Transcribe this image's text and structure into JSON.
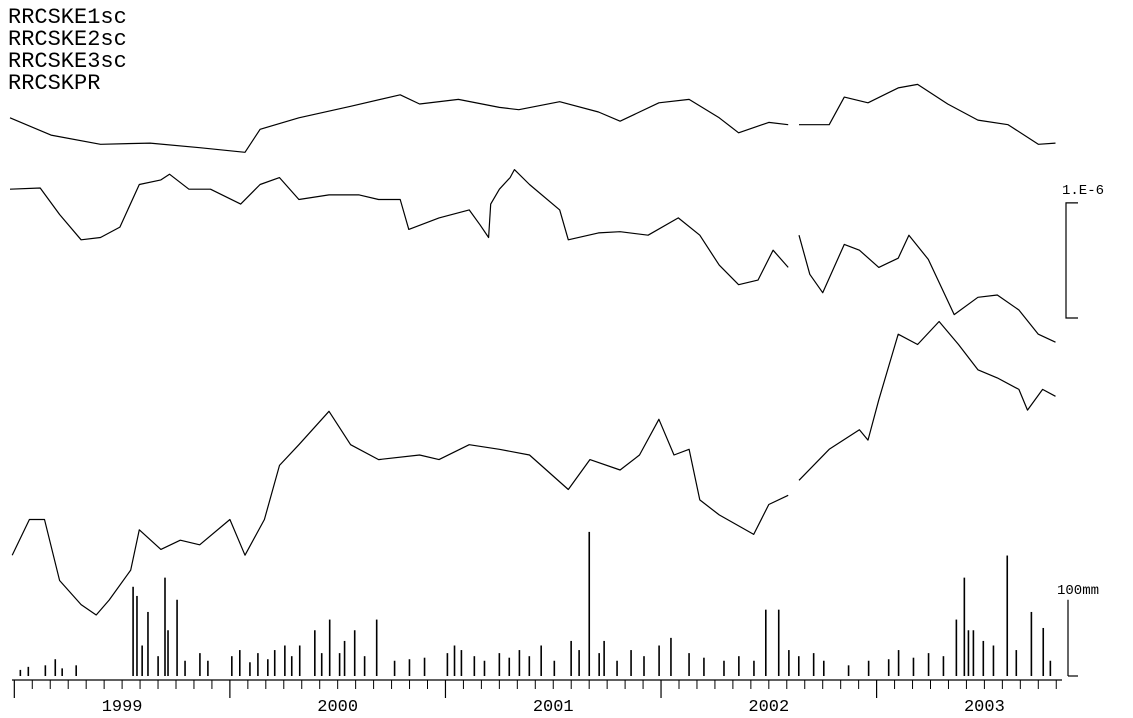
{
  "chart_data": {
    "type": "line",
    "xlim": [
      1998.98,
      2003.86
    ],
    "xticks": [
      1999,
      2000,
      2001,
      2002,
      2003
    ],
    "ylim": [
      0,
      5.3
    ],
    "y2lim": [
      0,
      800
    ],
    "series": [
      {
        "name": "RRCSKE1sc",
        "color": "#000000",
        "x": [
          1998.98,
          1999.17,
          1999.4,
          1999.63,
          1999.86,
          2000.07,
          2000.14,
          2000.32,
          2000.56,
          2000.79,
          2000.88,
          2001.06,
          2001.25,
          2001.34,
          2001.53,
          2001.71,
          2001.81,
          2001.99,
          2002.13,
          2002.27,
          2002.36,
          2002.5,
          2002.59,
          2002.61,
          2002.64,
          2002.78,
          2002.85,
          2002.96,
          2003.1,
          2003.19,
          2003.33,
          2003.47,
          2003.61,
          2003.75,
          2003.83
        ],
        "values": [
          4.85,
          4.7,
          4.62,
          4.63,
          4.59,
          4.55,
          4.75,
          4.85,
          4.95,
          5.05,
          4.97,
          5.01,
          4.94,
          4.92,
          4.99,
          4.9,
          4.82,
          4.98,
          5.01,
          4.85,
          4.72,
          4.81,
          4.79,
          null,
          4.79,
          4.79,
          5.03,
          4.98,
          5.11,
          5.14,
          4.97,
          4.83,
          4.79,
          4.62,
          4.63
        ]
      },
      {
        "name": "RRCSKE2sc",
        "color": "#000000",
        "x": [
          1998.98,
          1999.12,
          1999.21,
          1999.31,
          1999.4,
          1999.49,
          1999.58,
          1999.68,
          1999.72,
          1999.81,
          1999.91,
          2000.05,
          2000.14,
          2000.23,
          2000.32,
          2000.46,
          2000.6,
          2000.69,
          2000.79,
          2000.83,
          2000.97,
          2001.11,
          2001.16,
          2001.2,
          2001.21,
          2001.25,
          2001.3,
          2001.32,
          2001.39,
          2001.53,
          2001.57,
          2001.71,
          2001.81,
          2001.94,
          2002.08,
          2002.18,
          2002.27,
          2002.36,
          2002.45,
          2002.52,
          2002.59,
          2002.61,
          2002.64,
          2002.69,
          2002.75,
          2002.85,
          2002.92,
          2003.01,
          2003.1,
          2003.15,
          2003.24,
          2003.36,
          2003.47,
          2003.56,
          2003.66,
          2003.75,
          2003.83
        ],
        "values": [
          4.23,
          4.24,
          4.01,
          3.79,
          3.81,
          3.9,
          4.27,
          4.31,
          4.36,
          4.23,
          4.23,
          4.1,
          4.27,
          4.33,
          4.14,
          4.18,
          4.18,
          4.14,
          4.14,
          3.88,
          3.98,
          4.05,
          3.92,
          3.81,
          4.1,
          4.23,
          4.33,
          4.4,
          4.27,
          4.05,
          3.79,
          3.85,
          3.86,
          3.83,
          3.98,
          3.83,
          3.57,
          3.4,
          3.44,
          3.7,
          3.55,
          null,
          3.83,
          3.49,
          3.33,
          3.75,
          3.7,
          3.55,
          3.63,
          3.83,
          3.62,
          3.14,
          3.29,
          3.31,
          3.18,
          2.97,
          2.9
        ]
      },
      {
        "name": "RRCSKE3sc",
        "color": "#000000",
        "x": [
          1998.99,
          1999.07,
          1999.14,
          1999.21,
          1999.31,
          1999.38,
          1999.44,
          1999.54,
          1999.58,
          1999.68,
          1999.77,
          1999.86,
          2000.0,
          2000.07,
          2000.16,
          2000.23,
          2000.32,
          2000.46,
          2000.56,
          2000.69,
          2000.88,
          2000.97,
          2001.11,
          2001.25,
          2001.39,
          2001.57,
          2001.67,
          2001.81,
          2001.9,
          2001.99,
          2002.06,
          2002.13,
          2002.18,
          2002.27,
          2002.43,
          2002.5,
          2002.59,
          2002.61,
          2002.64,
          2002.78,
          2002.92,
          2002.96,
          2003.01,
          2003.1,
          2003.19,
          2003.29,
          2003.38,
          2003.47,
          2003.56,
          2003.66,
          2003.7,
          2003.77,
          2003.83
        ],
        "values": [
          1.05,
          1.36,
          1.36,
          0.83,
          0.62,
          0.53,
          0.66,
          0.92,
          1.27,
          1.1,
          1.18,
          1.14,
          1.36,
          1.05,
          1.36,
          1.83,
          2.01,
          2.3,
          2.01,
          1.88,
          1.92,
          1.88,
          2.01,
          1.97,
          1.92,
          1.62,
          1.88,
          1.79,
          1.92,
          2.23,
          1.92,
          1.97,
          1.53,
          1.4,
          1.23,
          1.49,
          1.57,
          null,
          1.7,
          1.97,
          2.14,
          2.05,
          2.4,
          2.97,
          2.88,
          3.08,
          2.88,
          2.66,
          2.59,
          2.49,
          2.31,
          2.49,
          2.43
        ]
      },
      {
        "name": "RRCSKPR",
        "color": "#000000",
        "type": "bar",
        "axis": "y2",
        "x": [
          1999.028,
          1999.065,
          1999.144,
          1999.19,
          1999.222,
          1999.287,
          1999.551,
          1999.569,
          1999.593,
          1999.62,
          1999.667,
          1999.699,
          1999.713,
          1999.755,
          1999.792,
          1999.861,
          1999.898,
          2000.009,
          2000.046,
          2000.093,
          2000.13,
          2000.176,
          2000.208,
          2000.255,
          2000.287,
          2000.324,
          2000.394,
          2000.426,
          2000.463,
          2000.509,
          2000.532,
          2000.579,
          2000.625,
          2000.681,
          2000.764,
          2000.833,
          2000.903,
          2001.009,
          2001.042,
          2001.074,
          2001.134,
          2001.181,
          2001.25,
          2001.296,
          2001.343,
          2001.389,
          2001.444,
          2001.505,
          2001.583,
          2001.62,
          2001.667,
          2001.713,
          2001.736,
          2001.796,
          2001.861,
          2001.921,
          2001.991,
          2002.046,
          2002.13,
          2002.199,
          2002.292,
          2002.361,
          2002.431,
          2002.486,
          2002.546,
          2002.593,
          2002.639,
          2002.708,
          2002.755,
          2002.87,
          2002.963,
          2003.056,
          2003.102,
          2003.171,
          2003.241,
          2003.31,
          2003.37,
          2003.407,
          2003.426,
          2003.449,
          2003.495,
          2003.542,
          2003.606,
          2003.648,
          2003.718,
          2003.773,
          2003.806
        ],
        "values": [
          8,
          12,
          14,
          22,
          10,
          14,
          117,
          105,
          40,
          84,
          26,
          129,
          60,
          100,
          20,
          30,
          20,
          26,
          34,
          18,
          30,
          22,
          34,
          40,
          26,
          40,
          60,
          30,
          74,
          30,
          46,
          60,
          26,
          74,
          20,
          22,
          24,
          30,
          40,
          34,
          26,
          20,
          30,
          24,
          34,
          26,
          40,
          20,
          46,
          34,
          189,
          30,
          46,
          20,
          34,
          26,
          40,
          50,
          30,
          24,
          20,
          26,
          20,
          87,
          87,
          34,
          26,
          30,
          20,
          14,
          20,
          22,
          34,
          24,
          30,
          26,
          74,
          129,
          60,
          60,
          46,
          40,
          158,
          34,
          84,
          63,
          20
        ]
      }
    ],
    "scale_bars": [
      {
        "label": "1.E-6",
        "value": 1
      },
      {
        "label": "100mm",
        "value": 100,
        "axis": "y2"
      }
    ]
  }
}
